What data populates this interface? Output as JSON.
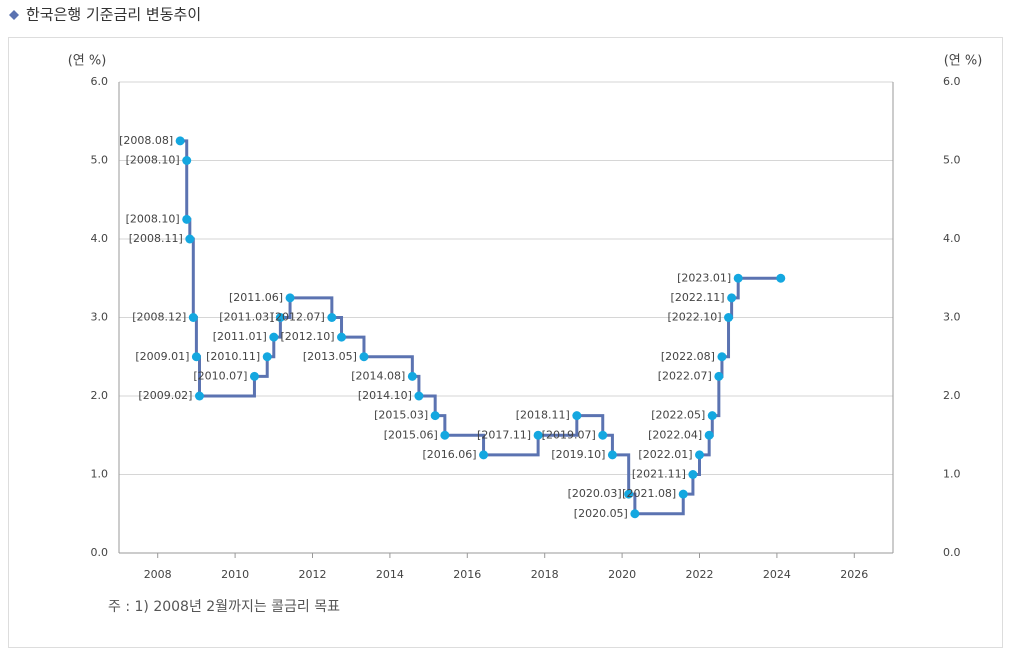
{
  "title": "한국은행 기준금리 변동추이",
  "note": "주 : 1) 2008년 2월까지는 콜금리 목표",
  "chart_data": {
    "type": "step",
    "y_label": "(연 %)",
    "y2_label": "(연 %)",
    "xlim": [
      2007,
      2027
    ],
    "xticks": [
      2008,
      2010,
      2012,
      2014,
      2016,
      2018,
      2020,
      2022,
      2024,
      2026
    ],
    "ylim": [
      0,
      6
    ],
    "yticks": [
      {
        "value": 0,
        "label": "0.0"
      },
      {
        "value": 1,
        "label": "1.0"
      },
      {
        "value": 2,
        "label": "2.0"
      },
      {
        "value": 3,
        "label": "3.0"
      },
      {
        "value": 4,
        "label": "4.0"
      },
      {
        "value": 5,
        "label": "5.0"
      },
      {
        "value": 6,
        "label": "6.0"
      }
    ],
    "y2lim": [
      0,
      6
    ],
    "y2ticks": [
      {
        "value": 0,
        "label": "0.0"
      },
      {
        "value": 1,
        "label": "1.0"
      },
      {
        "value": 2,
        "label": "2.0"
      },
      {
        "value": 3,
        "label": "3.0"
      },
      {
        "value": 4,
        "label": "4.0"
      },
      {
        "value": 5,
        "label": "5.0"
      },
      {
        "value": 6,
        "label": "6.0"
      }
    ],
    "grid": true,
    "line_color": "#5b73b1",
    "point_color": "#14a7e0",
    "x": [
      2008.58,
      2008.75,
      2008.75,
      2008.83,
      2008.92,
      2009.0,
      2009.08,
      2010.5,
      2010.83,
      2011.0,
      2011.17,
      2011.42,
      2012.5,
      2012.75,
      2013.33,
      2014.58,
      2014.75,
      2015.17,
      2015.42,
      2016.42,
      2017.83,
      2018.83,
      2019.5,
      2019.75,
      2020.17,
      2020.33,
      2021.58,
      2021.83,
      2022.0,
      2022.25,
      2022.33,
      2022.5,
      2022.58,
      2022.75,
      2022.83,
      2023.0,
      2024.1
    ],
    "values": [
      5.25,
      5.0,
      4.25,
      4.0,
      3.0,
      2.5,
      2.0,
      2.25,
      2.5,
      2.75,
      3.0,
      3.25,
      3.0,
      2.75,
      2.5,
      2.25,
      2.0,
      1.75,
      1.5,
      1.25,
      1.5,
      1.75,
      1.5,
      1.25,
      0.75,
      0.5,
      0.75,
      1.0,
      1.25,
      1.5,
      1.75,
      2.25,
      2.5,
      3.0,
      3.25,
      3.5,
      3.5
    ],
    "point_labels": [
      "[2008.08]",
      "[2008.10]",
      "[2008.10]",
      "[2008.11]",
      "[2008.12]",
      "[2009.01]",
      "[2009.02]",
      "[2010.07]",
      "[2010.11]",
      "[2011.01]",
      "[2011.03]",
      "[2011.06]",
      "[2012.07]",
      "[2012.10]",
      "[2013.05]",
      "[2014.08]",
      "[2014.10]",
      "[2015.03]",
      "[2015.06]",
      "[2016.06]",
      "[2017.11]",
      "[2018.11]",
      "[2019.07]",
      "[2019.10]",
      "[2020.03]",
      "[2020.05]",
      "[2021.08]",
      "[2021.11]",
      "[2022.01]",
      "[2022.04]",
      "[2022.05]",
      "[2022.07]",
      "[2022.08]",
      "[2022.10]",
      "[2022.11]",
      "[2023.01]",
      null
    ]
  }
}
